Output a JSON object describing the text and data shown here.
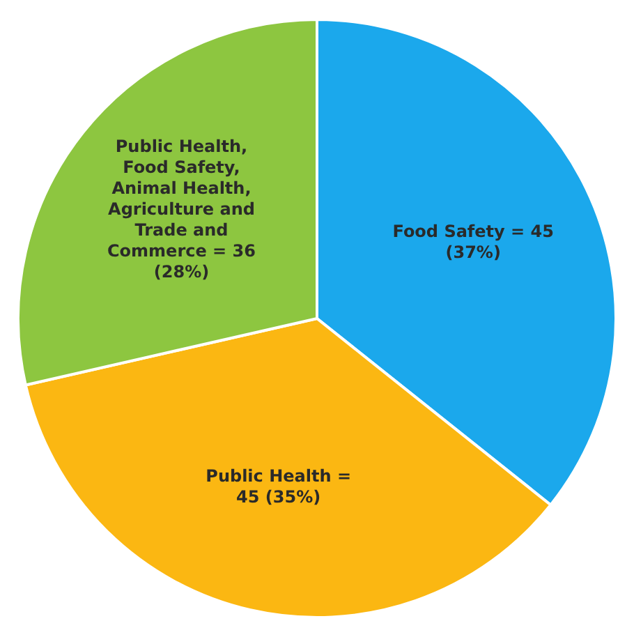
{
  "chart_data": {
    "type": "pie",
    "categories": [
      "Food Safety",
      "Public Health",
      "Public Health, Food Safety, Animal Health, Agriculture and Trade and Commerce"
    ],
    "values": [
      45,
      45,
      36
    ],
    "value_labels": [
      "= 45 (37%)",
      "= 45 (35%)",
      "= 36 (28%)"
    ],
    "colors": [
      "#1ba8ec",
      "#fbb712",
      "#8dc640"
    ],
    "legend": false
  }
}
